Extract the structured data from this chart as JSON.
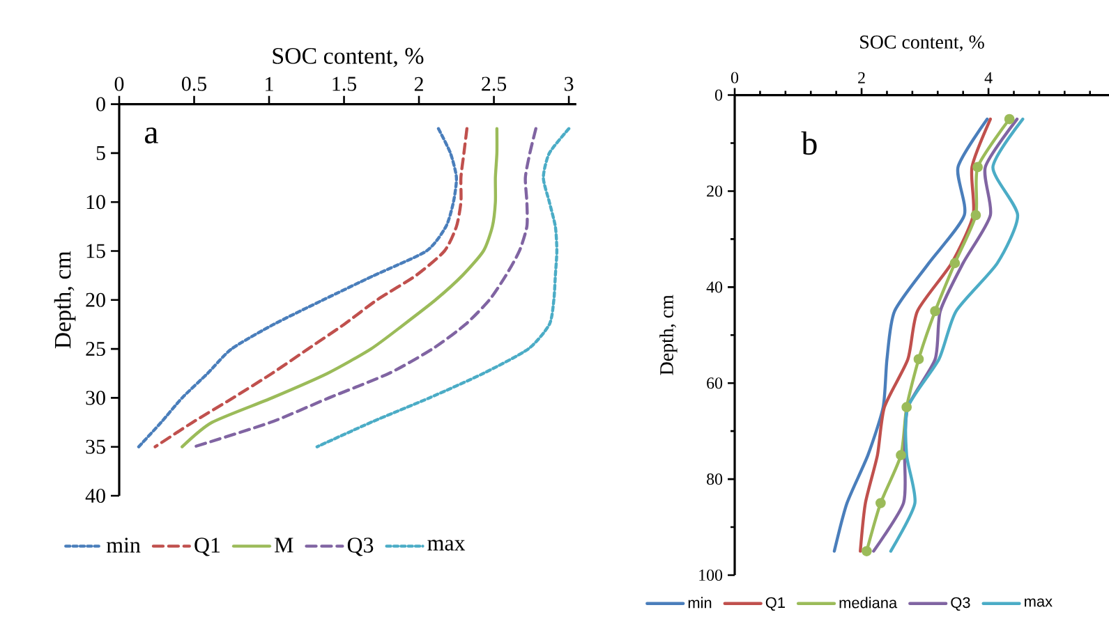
{
  "chart_data": [
    {
      "type": "line",
      "xlabel": "SOC content, %",
      "ylabel": "Depth, cm",
      "annotations": [
        "a"
      ],
      "xlim": [
        0,
        3.05
      ],
      "xticks": [
        0,
        0.5,
        1,
        1.5,
        2,
        2.5,
        3
      ],
      "ylim": [
        40,
        0
      ],
      "yticks": [
        0,
        5,
        10,
        15,
        20,
        25,
        30,
        35,
        40
      ],
      "legend": "bottom",
      "grid": false,
      "series": [
        {
          "name": "min",
          "color": "#4a7ebb",
          "line_style": "dotted",
          "x": [
            2.13,
            2.21,
            2.25,
            2.23,
            2.18,
            2.05,
            1.7,
            1.36,
            1.03,
            0.75,
            0.59,
            0.42,
            0.28,
            0.13
          ],
          "values": [
            2.5,
            5,
            7.5,
            10,
            12.5,
            15,
            17.5,
            20,
            22.5,
            25,
            27.5,
            30,
            32.5,
            35
          ]
        },
        {
          "name": "Q1",
          "color": "#c0504d",
          "line_style": "dashed",
          "x": [
            2.32,
            2.3,
            2.28,
            2.28,
            2.25,
            2.17,
            1.98,
            1.72,
            1.5,
            1.26,
            1.02,
            0.76,
            0.49,
            0.24
          ],
          "values": [
            2.5,
            5,
            7.5,
            10,
            12.5,
            15,
            17.5,
            20,
            22.5,
            25,
            27.5,
            30,
            32.5,
            35
          ]
        },
        {
          "name": "M",
          "color": "#9bbb59",
          "line_style": "solid",
          "x": [
            2.52,
            2.52,
            2.51,
            2.51,
            2.49,
            2.43,
            2.29,
            2.11,
            1.9,
            1.68,
            1.39,
            1.02,
            0.62,
            0.42
          ],
          "values": [
            2.5,
            5,
            7.5,
            10,
            12.5,
            15,
            17.5,
            20,
            22.5,
            25,
            27.5,
            30,
            32.5,
            35
          ]
        },
        {
          "name": "Q3",
          "color": "#8064a2",
          "line_style": "dashed",
          "x": [
            2.78,
            2.74,
            2.71,
            2.72,
            2.72,
            2.67,
            2.58,
            2.47,
            2.31,
            2.09,
            1.8,
            1.4,
            1.01,
            0.5
          ],
          "values": [
            2.5,
            5,
            7.5,
            10,
            12.5,
            15,
            17.5,
            20,
            22.5,
            25,
            27.5,
            30,
            32.5,
            35
          ]
        },
        {
          "name": "max",
          "color": "#4bacc6",
          "line_style": "dotted",
          "x": [
            3.0,
            2.87,
            2.83,
            2.87,
            2.91,
            2.92,
            2.91,
            2.9,
            2.87,
            2.73,
            2.43,
            2.07,
            1.68,
            1.32
          ],
          "values": [
            2.5,
            5,
            7.5,
            10,
            12.5,
            15,
            17.5,
            20,
            22.5,
            25,
            27.5,
            30,
            32.5,
            35
          ]
        }
      ]
    },
    {
      "type": "line",
      "xlabel": "SOC content, %",
      "ylabel": "Depth, cm",
      "annotations": [
        "b"
      ],
      "xlim": [
        0,
        5.9
      ],
      "xticks": [
        0,
        {
          "value": 0.4,
          "label": null
        },
        {
          "value": 0.8,
          "label": null
        },
        {
          "value": 1.2,
          "label": null
        },
        {
          "value": 1.6,
          "label": null
        },
        2,
        {
          "value": 2.4,
          "label": null
        },
        {
          "value": 2.8,
          "label": null
        },
        {
          "value": 3.2,
          "label": null
        },
        {
          "value": 3.6,
          "label": null
        },
        4,
        {
          "value": 4.4,
          "label": null
        },
        {
          "value": 4.8,
          "label": null
        },
        {
          "value": 5.2,
          "label": null
        },
        {
          "value": 5.6,
          "label": null
        }
      ],
      "ylim": [
        100,
        0
      ],
      "yticks": [
        0,
        {
          "value": 10,
          "label": null
        },
        20,
        {
          "value": 30,
          "label": null
        },
        40,
        {
          "value": 50,
          "label": null
        },
        60,
        {
          "value": 70,
          "label": null
        },
        80,
        {
          "value": 90,
          "label": null
        },
        100
      ],
      "legend": "bottom",
      "grid": false,
      "series": [
        {
          "name": "min",
          "color": "#4a7ebb",
          "line_style": "solid",
          "marker": "none",
          "x": [
            3.98,
            3.52,
            3.62,
            3.06,
            2.52,
            2.4,
            2.34,
            2.1,
            1.77,
            1.57
          ],
          "values": [
            5,
            15,
            25,
            35,
            45,
            55,
            65,
            75,
            85,
            95
          ]
        },
        {
          "name": "Q1",
          "color": "#c0504d",
          "line_style": "solid",
          "marker": "none",
          "x": [
            4.03,
            3.74,
            3.76,
            3.42,
            2.88,
            2.73,
            2.36,
            2.25,
            2.06,
            1.98
          ],
          "values": [
            5,
            15,
            25,
            35,
            45,
            55,
            65,
            75,
            85,
            95
          ]
        },
        {
          "name": "mediana",
          "color": "#9bbb59",
          "line_style": "solid",
          "marker": "circle",
          "x": [
            4.33,
            3.83,
            3.8,
            3.47,
            3.16,
            2.9,
            2.71,
            2.62,
            2.3,
            2.08
          ],
          "values": [
            5,
            15,
            25,
            35,
            45,
            55,
            65,
            75,
            85,
            95
          ]
        },
        {
          "name": "Q3",
          "color": "#8064a2",
          "line_style": "solid",
          "marker": "none",
          "x": [
            4.45,
            3.95,
            4.03,
            3.6,
            3.24,
            3.16,
            2.73,
            2.68,
            2.66,
            2.19
          ],
          "values": [
            5,
            15,
            25,
            35,
            45,
            55,
            65,
            75,
            85,
            95
          ]
        },
        {
          "name": "max",
          "color": "#4bacc6",
          "line_style": "solid",
          "marker": "none",
          "x": [
            4.54,
            4.07,
            4.46,
            4.14,
            3.49,
            3.22,
            2.73,
            2.71,
            2.84,
            2.46
          ],
          "values": [
            5,
            15,
            25,
            35,
            45,
            55,
            65,
            75,
            85,
            95
          ]
        }
      ]
    }
  ]
}
